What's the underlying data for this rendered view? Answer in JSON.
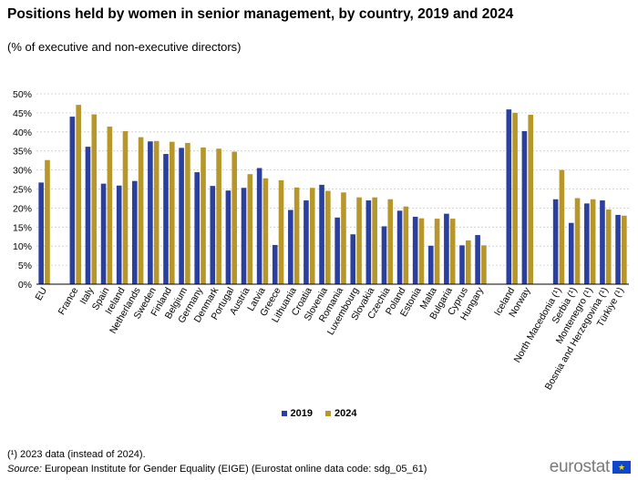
{
  "title": "Positions held by women in senior management, by country, 2019 and 2024",
  "subtitle": "(% of executive and non-executive directors)",
  "footnote": "(¹) 2023 data (instead of 2024).",
  "source_label": "Source:",
  "source_text": " European Institute  for Gender Equality (EIGE) (Eurostat online data code: sdg_05_61)",
  "logo_text": "eurostat",
  "colors": {
    "series_2019": "#2b3f9e",
    "series_2024": "#b7962a",
    "grid": "#cccccc",
    "axis": "#000000"
  },
  "chart_data": {
    "type": "bar",
    "title": "Positions held by women in senior management, by country, 2019 and 2024",
    "subtitle": "(% of executive and non-executive directors)",
    "xlabel": "",
    "ylabel": "",
    "ylim": [
      0,
      50
    ],
    "yticks": [
      "0%",
      "5%",
      "10%",
      "15%",
      "20%",
      "25%",
      "30%",
      "35%",
      "40%",
      "45%",
      "50%"
    ],
    "grid": true,
    "legend_position": "bottom-center",
    "categories": [
      "EU",
      "",
      "France",
      "Italy",
      "Spain",
      "Ireland",
      "Netherlands",
      "Sweden",
      "Finland",
      "Belgium",
      "Germany",
      "Denmark",
      "Portugal",
      "Austria",
      "Latvia",
      "Greece",
      "Lithuania",
      "Croatia",
      "Slovenia",
      "Romania",
      "Luxembourg",
      "Slovakia",
      "Czechia",
      "Poland",
      "Estonia",
      "Malta",
      "Bulgaria",
      "Cyprus",
      "Hungary",
      "",
      "Iceland",
      "Norway",
      "",
      "North Macedonia (¹)",
      "Serbia (¹)",
      "Montenegro (¹)",
      "Bosnia and Herzegovina (¹)",
      "Türkiye (¹)"
    ],
    "series": [
      {
        "name": "2019",
        "values": [
          26.7,
          null,
          44.0,
          36.1,
          26.4,
          25.9,
          27.1,
          37.5,
          34.2,
          35.8,
          29.4,
          25.8,
          24.6,
          25.3,
          30.5,
          10.3,
          19.5,
          22.0,
          26.1,
          17.5,
          13.1,
          22.0,
          15.2,
          19.3,
          17.7,
          10.1,
          18.5,
          10.2,
          12.9,
          null,
          45.9,
          40.2,
          null,
          22.3,
          16.1,
          21.2,
          22.0,
          18.2
        ]
      },
      {
        "name": "2024",
        "values": [
          32.6,
          null,
          47.1,
          44.6,
          41.4,
          40.2,
          38.6,
          37.6,
          37.4,
          37.1,
          35.9,
          35.6,
          34.8,
          28.9,
          27.8,
          27.3,
          25.4,
          25.3,
          24.5,
          24.1,
          22.8,
          22.8,
          22.3,
          20.4,
          17.3,
          17.2,
          17.2,
          11.5,
          10.2,
          null,
          45.0,
          44.5,
          null,
          30.0,
          22.6,
          22.3,
          19.6,
          18.0
        ]
      }
    ]
  }
}
